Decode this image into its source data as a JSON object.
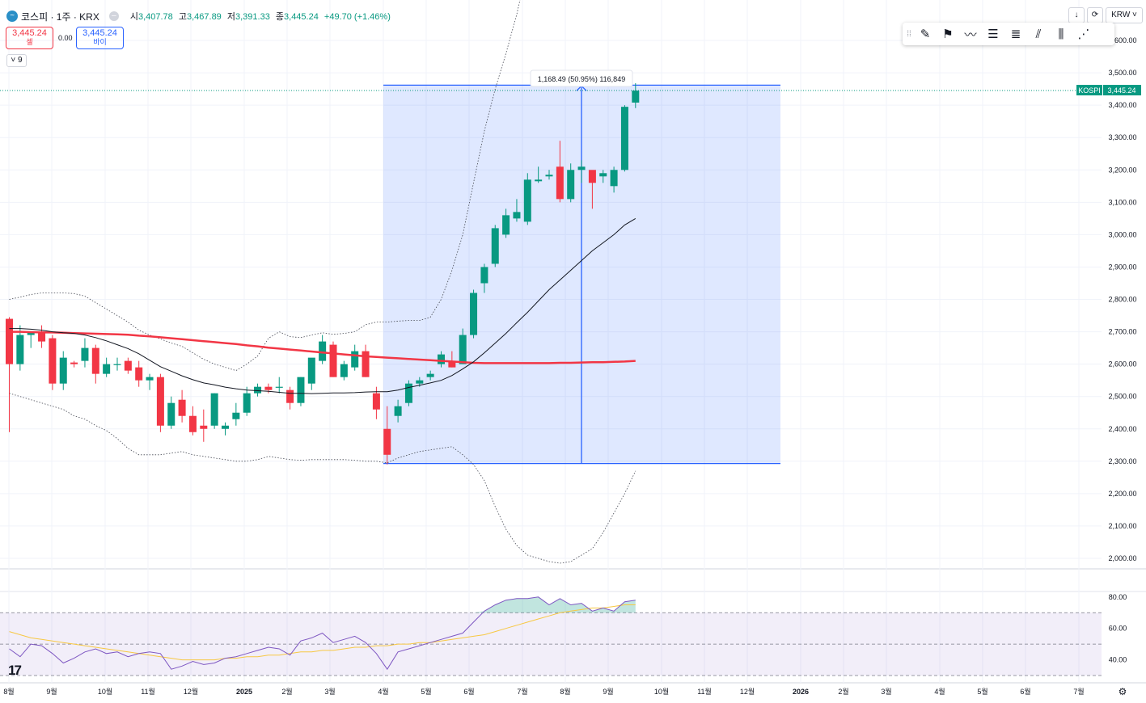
{
  "header": {
    "symbol": "코스피 · 1주 · KRX",
    "ohlc": [
      {
        "k": "시",
        "v": "3,407.78"
      },
      {
        "k": "고",
        "v": "3,467.89"
      },
      {
        "k": "저",
        "v": "3,391.33"
      },
      {
        "k": "종",
        "v": "3,445.24"
      }
    ],
    "change": "+49.70 (+1.46%)"
  },
  "trade": {
    "sell_price": "3,445.24",
    "sell_label": "셀",
    "buy_price": "3,445.24",
    "buy_label": "바이",
    "spread": "0.00"
  },
  "indicator_toggle": "9",
  "top_buttons": {
    "currency": "KRW"
  },
  "toolbar_icons": [
    "brush-icon",
    "flag-icon",
    "path-icon",
    "parallel-lines-icon",
    "fib-icon",
    "ray-icon",
    "pitchfork-icon",
    "gann-fan-icon"
  ],
  "colors": {
    "up": "#089981",
    "down": "#f23645",
    "ma_long": "#f23645",
    "ma_short": "#131722",
    "measure": "#2962ff",
    "rsi": "#7e57c2",
    "rsi_ma": "#f7c843"
  },
  "chart_data": [
    {
      "type": "candlestick",
      "ticker": "KOSPI",
      "last_price": "3,445.24",
      "measure_label": "1,168.49 (50.95%) 116,849",
      "x_labels": [
        "8월",
        "9월",
        "10월",
        "11월",
        "12월",
        "2025",
        "2월",
        "3월",
        "4월",
        "5월",
        "6월",
        "7월",
        "8월",
        "9월",
        "10월",
        "11월",
        "12월",
        "2026",
        "2월",
        "3월",
        "4월",
        "5월",
        "6월",
        "7월"
      ],
      "y_ticks": [
        2000,
        2100,
        2200,
        2300,
        2400,
        2500,
        2600,
        2700,
        2800,
        2900,
        3000,
        3100,
        3200,
        3300,
        3400,
        3500,
        3600
      ],
      "y_tick_labels": [
        "2,000.00",
        "2,100.00",
        "2,200.00",
        "2,300.00",
        "2,400.00",
        "2,500.00",
        "2,600.00",
        "2,700.00",
        "2,800.00",
        "2,900.00",
        "3,000.00",
        "3,100.00",
        "3,200.00",
        "3,300.00",
        "3,400.00",
        "3,500.00",
        "3,600.00"
      ],
      "ylim": [
        1970,
        3700
      ],
      "measure_range": [
        2293,
        3462
      ],
      "candles": [
        [
          2740,
          2745,
          2390,
          2600
        ],
        [
          2600,
          2720,
          2580,
          2690
        ],
        [
          2690,
          2700,
          2650,
          2700
        ],
        [
          2700,
          2720,
          2650,
          2670
        ],
        [
          2680,
          2690,
          2520,
          2540
        ],
        [
          2540,
          2640,
          2520,
          2620
        ],
        [
          2605,
          2610,
          2590,
          2600
        ],
        [
          2610,
          2680,
          2590,
          2650
        ],
        [
          2650,
          2660,
          2540,
          2570
        ],
        [
          2570,
          2620,
          2560,
          2600
        ],
        [
          2600,
          2620,
          2580,
          2600
        ],
        [
          2610,
          2620,
          2570,
          2580
        ],
        [
          2590,
          2610,
          2530,
          2550
        ],
        [
          2550,
          2570,
          2520,
          2560
        ],
        [
          2560,
          2570,
          2390,
          2410
        ],
        [
          2410,
          2500,
          2400,
          2480
        ],
        [
          2490,
          2520,
          2420,
          2440
        ],
        [
          2440,
          2470,
          2380,
          2390
        ],
        [
          2410,
          2460,
          2360,
          2400
        ],
        [
          2410,
          2510,
          2400,
          2510
        ],
        [
          2400,
          2420,
          2380,
          2410
        ],
        [
          2430,
          2480,
          2410,
          2450
        ],
        [
          2450,
          2530,
          2440,
          2510
        ],
        [
          2510,
          2540,
          2500,
          2530
        ],
        [
          2530,
          2540,
          2510,
          2520
        ],
        [
          2530,
          2560,
          2510,
          2530
        ],
        [
          2520,
          2530,
          2460,
          2480
        ],
        [
          2480,
          2560,
          2470,
          2560
        ],
        [
          2540,
          2610,
          2520,
          2620
        ],
        [
          2610,
          2690,
          2600,
          2670
        ],
        [
          2660,
          2670,
          2560,
          2560
        ],
        [
          2560,
          2610,
          2550,
          2600
        ],
        [
          2590,
          2660,
          2580,
          2640
        ],
        [
          2640,
          2660,
          2560,
          2560
        ],
        [
          2510,
          2530,
          2430,
          2460
        ],
        [
          2400,
          2470,
          2290,
          2320
        ],
        [
          2440,
          2490,
          2420,
          2470
        ],
        [
          2480,
          2550,
          2470,
          2540
        ],
        [
          2540,
          2560,
          2530,
          2550
        ],
        [
          2560,
          2580,
          2550,
          2570
        ],
        [
          2600,
          2640,
          2590,
          2630
        ],
        [
          2610,
          2640,
          2590,
          2590
        ],
        [
          2600,
          2710,
          2600,
          2690
        ],
        [
          2690,
          2830,
          2680,
          2820
        ],
        [
          2850,
          2910,
          2820,
          2900
        ],
        [
          2910,
          3030,
          2900,
          3020
        ],
        [
          3000,
          3080,
          2990,
          3060
        ],
        [
          3050,
          3110,
          3040,
          3070
        ],
        [
          3040,
          3190,
          3030,
          3170
        ],
        [
          3165,
          3210,
          3160,
          3170
        ],
        [
          3180,
          3200,
          3170,
          3185
        ],
        [
          3210,
          3290,
          3100,
          3110
        ],
        [
          3110,
          3220,
          3100,
          3200
        ],
        [
          3200,
          3230,
          3160,
          3210
        ],
        [
          3200,
          3190,
          3080,
          3160
        ],
        [
          3180,
          3200,
          3160,
          3190
        ],
        [
          3150,
          3210,
          3130,
          3200
        ],
        [
          3200,
          3400,
          3195,
          3395
        ],
        [
          3408,
          3468,
          3391,
          3445
        ]
      ],
      "ma_short": [
        2710,
        2710,
        2708,
        2705,
        2700,
        2697,
        2695,
        2690,
        2682,
        2672,
        2660,
        2648,
        2632,
        2612,
        2592,
        2578,
        2564,
        2552,
        2542,
        2536,
        2529,
        2524,
        2520,
        2518,
        2516,
        2513,
        2510,
        2510,
        2509,
        2510,
        2511,
        2511,
        2512,
        2514,
        2515,
        2515,
        2520,
        2528,
        2535,
        2542,
        2550,
        2565,
        2585,
        2607,
        2635,
        2665,
        2695,
        2728,
        2760,
        2795,
        2830,
        2860,
        2890,
        2920,
        2950,
        2975,
        3000,
        3030,
        3050
      ],
      "ma_long": [
        2700,
        2700,
        2699,
        2698,
        2698,
        2697,
        2696,
        2695,
        2694,
        2693,
        2692,
        2691,
        2688,
        2686,
        2683,
        2680,
        2677,
        2674,
        2671,
        2668,
        2665,
        2662,
        2658,
        2655,
        2651,
        2648,
        2645,
        2642,
        2639,
        2636,
        2633,
        2630,
        2627,
        2624,
        2622,
        2620,
        2618,
        2616,
        2614,
        2612,
        2610,
        2608,
        2606,
        2604,
        2603,
        2603,
        2603,
        2603,
        2603,
        2603,
        2603,
        2604,
        2604,
        2605,
        2606,
        2606,
        2607,
        2608,
        2610
      ],
      "band_upper": [
        2800,
        2807,
        2815,
        2820,
        2820,
        2820,
        2818,
        2810,
        2790,
        2770,
        2750,
        2730,
        2705,
        2690,
        2678,
        2665,
        2655,
        2635,
        2615,
        2600,
        2590,
        2580,
        2600,
        2625,
        2680,
        2700,
        2685,
        2682,
        2690,
        2697,
        2692,
        2695,
        2700,
        2722,
        2730,
        2730,
        2733,
        2735,
        2735,
        2745,
        2800,
        2890,
        3000,
        3160,
        3320,
        3450,
        3560,
        3680,
        3830,
        3990,
        4060,
        4140,
        4240,
        4280,
        4310,
        4280,
        4240,
        4260,
        4300
      ],
      "band_lower": [
        2510,
        2500,
        2490,
        2480,
        2470,
        2460,
        2440,
        2430,
        2410,
        2395,
        2370,
        2340,
        2320,
        2320,
        2320,
        2325,
        2330,
        2320,
        2315,
        2310,
        2305,
        2300,
        2300,
        2305,
        2315,
        2310,
        2305,
        2303,
        2305,
        2305,
        2305,
        2305,
        2303,
        2300,
        2300,
        2295,
        2310,
        2320,
        2330,
        2335,
        2340,
        2345,
        2320,
        2290,
        2240,
        2160,
        2090,
        2040,
        2010,
        2000,
        1990,
        1985,
        1990,
        2010,
        2030,
        2080,
        2140,
        2200,
        2270
      ]
    },
    {
      "type": "line",
      "name": "RSI",
      "y_ticks": [
        40,
        60,
        80
      ],
      "y_tick_labels": [
        "40.00",
        "60.00",
        "80.00"
      ],
      "ylim": [
        30,
        83
      ],
      "band": [
        30,
        70
      ],
      "mid": 50,
      "rsi": [
        47,
        42,
        50,
        49,
        44,
        38,
        41,
        45,
        47,
        44,
        45,
        42,
        44,
        45,
        44,
        34,
        36,
        39,
        37,
        38,
        41,
        42,
        44,
        46,
        48,
        47,
        43,
        52,
        54,
        57,
        51,
        53,
        55,
        51,
        44,
        34,
        45,
        47,
        49,
        51,
        53,
        55,
        57,
        64,
        71,
        75,
        78,
        79,
        79,
        80,
        75,
        79,
        75,
        76,
        71,
        73,
        71,
        77,
        78
      ],
      "rsi_ma": [
        58,
        56,
        54,
        53,
        52,
        51,
        50,
        49,
        48,
        47,
        46,
        45,
        44,
        43,
        42,
        41,
        40,
        40,
        40,
        40,
        41,
        41,
        42,
        42,
        43,
        43,
        44,
        45,
        45,
        46,
        46,
        47,
        48,
        48,
        49,
        49,
        50,
        50,
        51,
        51,
        52,
        53,
        54,
        55,
        56,
        58,
        60,
        62,
        64,
        66,
        68,
        70,
        71,
        72,
        73,
        73,
        74,
        75,
        75
      ]
    }
  ]
}
